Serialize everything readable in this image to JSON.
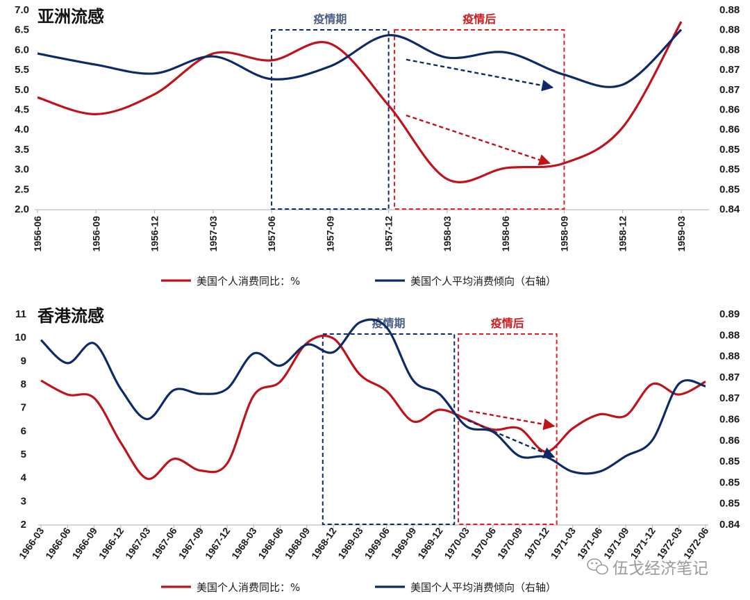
{
  "colors": {
    "red": "#c0121b",
    "navy": "#0d2a66",
    "axis": "#bdbdbd"
  },
  "watermark": "伍戈经济笔记",
  "chart_data": [
    {
      "type": "line",
      "title": "亚洲流感",
      "categories": [
        "1956-06",
        "1956-09",
        "1956-12",
        "1957-03",
        "1957-06",
        "1957-09",
        "1957-12",
        "1958-03",
        "1958-06",
        "1958-09",
        "1958-12",
        "1959-03"
      ],
      "ylim": [
        2.0,
        7.0
      ],
      "y_ticks": [
        "2.0",
        "2.5",
        "3.0",
        "3.5",
        "4.0",
        "4.5",
        "5.0",
        "5.5",
        "6.0",
        "6.5",
        "7.0"
      ],
      "y2lim": [
        0.84,
        0.89
      ],
      "y2_ticks": [
        "0.84",
        "0.85",
        "0.85",
        "0.85",
        "0.86",
        "0.86",
        "0.87",
        "0.87",
        "0.88",
        "0.88",
        "0.88"
      ],
      "series": [
        {
          "name": "美国个人消费同比：%",
          "color": "#c0121b",
          "axis": "left",
          "values": [
            4.8,
            4.38,
            4.88,
            5.9,
            5.73,
            6.15,
            4.6,
            2.75,
            3.03,
            3.15,
            4.05,
            6.7
          ]
        },
        {
          "name": "美国个人平均消费倾向（右轴）",
          "color": "#0d2a66",
          "axis": "right",
          "values": [
            0.879,
            0.8762,
            0.874,
            0.8783,
            0.8726,
            0.8758,
            0.8836,
            0.878,
            0.8793,
            0.8737,
            0.8712,
            0.885
          ]
        }
      ],
      "boxes": [
        {
          "label": "疫情期",
          "color": "#0d2a66",
          "label_color": "#4a5f86",
          "from": 4.0,
          "to": 6.0
        },
        {
          "label": "疫情后",
          "color": "#e02020",
          "label_color": "#d0181f",
          "from": 6.1,
          "to": 9.0
        }
      ],
      "arrows": [
        {
          "color": "#0d2a66",
          "from": [
            6.3,
            0.8775
          ],
          "to": [
            8.8,
            0.8705
          ]
        },
        {
          "color": "#c0121b",
          "from": [
            6.3,
            4.35
          ],
          "to": [
            8.75,
            3.15
          ]
        }
      ],
      "legend": [
        "美国个人消费同比：%",
        "美国个人平均消费倾向（右轴）"
      ]
    },
    {
      "type": "line",
      "title": "香港流感",
      "categories": [
        "1966-03",
        "1966-06",
        "1966-09",
        "1966-12",
        "1967-03",
        "1967-06",
        "1967-09",
        "1967-12",
        "1968-03",
        "1968-06",
        "1968-09",
        "1968-12",
        "1969-03",
        "1969-06",
        "1969-09",
        "1969-12",
        "1970-03",
        "1970-06",
        "1970-09",
        "1970-12",
        "1971-03",
        "1971-06",
        "1971-09",
        "1971-12",
        "1972-03",
        "1972-06"
      ],
      "ylim": [
        2,
        11
      ],
      "y_ticks": [
        "2",
        "3",
        "4",
        "5",
        "6",
        "7",
        "8",
        "9",
        "10",
        "11"
      ],
      "y2lim": [
        0.84,
        0.89
      ],
      "y2_ticks": [
        "0.84",
        "0.85",
        "0.85",
        "0.85",
        "0.86",
        "0.86",
        "0.87",
        "0.87",
        "0.88",
        "0.88",
        "0.89"
      ],
      "series": [
        {
          "name": "美国个人消费同比：%",
          "color": "#c0121b",
          "axis": "left",
          "values": [
            8.15,
            7.55,
            7.4,
            5.5,
            3.95,
            4.8,
            4.3,
            4.6,
            7.5,
            8.1,
            9.75,
            9.95,
            8.4,
            7.7,
            6.4,
            6.9,
            6.5,
            6.05,
            6.1,
            5.1,
            6.1,
            6.7,
            6.65,
            8.0,
            7.55,
            8.1
          ]
        },
        {
          "name": "美国个人平均消费倾向（右轴）",
          "color": "#0d2a66",
          "axis": "right",
          "values": [
            0.8838,
            0.8783,
            0.883,
            0.8722,
            0.865,
            0.8719,
            0.871,
            0.8722,
            0.8806,
            0.8777,
            0.8827,
            0.8809,
            0.888,
            0.8868,
            0.8742,
            0.8709,
            0.8633,
            0.862,
            0.8562,
            0.856,
            0.8525,
            0.8525,
            0.8562,
            0.86,
            0.8734,
            0.8728
          ]
        }
      ],
      "boxes": [
        {
          "label": "疫情期",
          "color": "#0d2a66",
          "label_color": "#4a5f86",
          "from": 10.6,
          "to": 15.55
        },
        {
          "label": "疫情后",
          "color": "#e02020",
          "label_color": "#d0181f",
          "from": 15.7,
          "to": 19.4
        }
      ],
      "arrows": [
        {
          "color": "#c0121b",
          "from": [
            16.1,
            6.85
          ],
          "to": [
            19.3,
            6.2
          ]
        },
        {
          "color": "#0d2a66",
          "from": [
            16.05,
            0.8647
          ],
          "to": [
            19.3,
            0.856
          ]
        }
      ],
      "legend": [
        "美国个人消费同比：%",
        "美国个人平均消费倾向（右轴）"
      ]
    }
  ]
}
